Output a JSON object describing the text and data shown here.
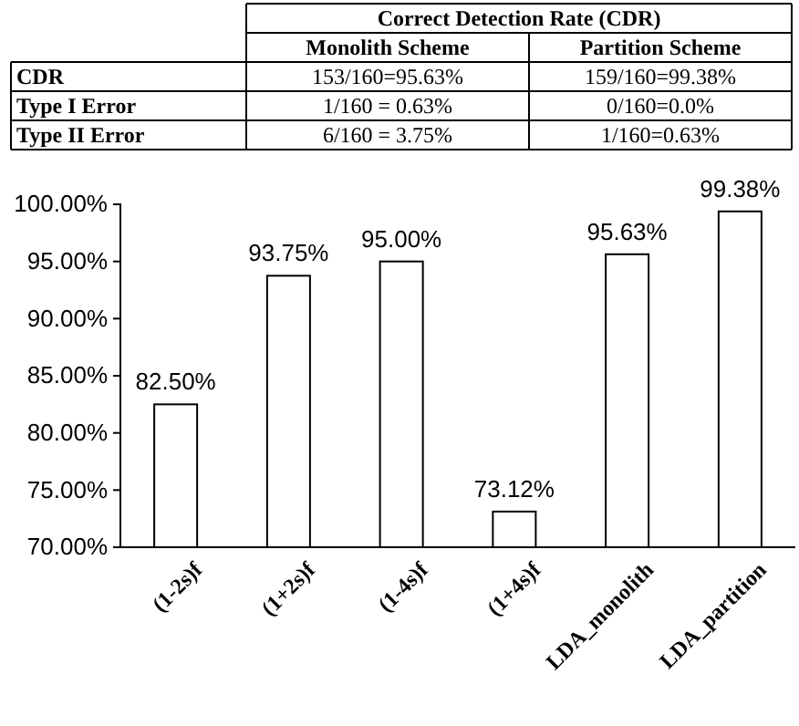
{
  "chart_data": [
    {
      "type": "other",
      "annotations": [
        "Correct Detection Rate (CDR)",
        "Monolith Scheme",
        "Partition Scheme",
        "CDR",
        "153/160=95.63%",
        "159/160=99.38%",
        "Type I Error",
        "1/160 = 0.63%",
        "0/160=0.0%",
        "Type II Error",
        "6/160 = 3.75%",
        "1/160=0.63%"
      ]
    },
    {
      "type": "bar",
      "categories": [
        "(1-2s)f",
        "(1+2s)f",
        "(1-4s)f",
        "(1+4s)f",
        "LDA_monolith",
        "LDA_partition"
      ],
      "values": [
        82.5,
        93.75,
        95.0,
        73.12,
        95.63,
        99.38
      ],
      "value_labels": [
        "82.50%",
        "93.75%",
        "95.00%",
        "73.12%",
        "95.63%",
        "99.38%"
      ],
      "color": "#ffffff",
      "ylim": [
        70,
        100
      ],
      "yticks": [
        {
          "value": 70,
          "label": "70.00%"
        },
        {
          "value": 75,
          "label": "75.00%"
        },
        {
          "value": 80,
          "label": "80.00%"
        },
        {
          "value": 85,
          "label": "85.00%"
        },
        {
          "value": 90,
          "label": "90.00%"
        },
        {
          "value": 95,
          "label": "95.00%"
        },
        {
          "value": 100,
          "label": "100.00%"
        }
      ],
      "grid": false
    }
  ]
}
